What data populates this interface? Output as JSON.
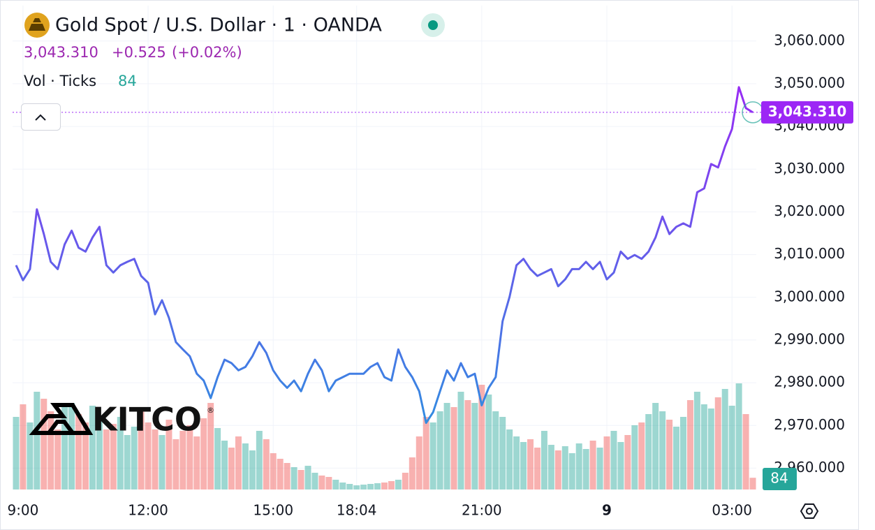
{
  "header": {
    "symbol": "Gold Spot / U.S. Dollar · 1 · OANDA",
    "change": {
      "value": 0.525,
      "label": "+0.525"
    },
    "change_percent": {
      "value": 0.02,
      "label": "(+0.02%)"
    },
    "volume_legend": "Vol · Ticks"
  },
  "logo": {
    "text": "KITCO",
    "mark": "®"
  },
  "chart_data": {
    "type": "line",
    "last_price": {
      "value": 3043.31,
      "label": "3,043.310"
    },
    "series": [
      {
        "gradient": [
          "#9c27f5",
          "#2f8fe0"
        ],
        "values": [
          3007.5,
          3004,
          3006.6,
          3020.6,
          3014.8,
          3008.3,
          3006.6,
          3012.4,
          3015.6,
          3011.6,
          3010.7,
          3014,
          3016.5,
          3007.5,
          3005.8,
          3007.5,
          3008.3,
          3009,
          3005,
          3003.4,
          2996,
          2999.3,
          2995.2,
          2989.5,
          2987.8,
          2986.2,
          2982.1,
          2980.5,
          2976.4,
          2981.3,
          2985.4,
          2984.6,
          2982.9,
          2983.7,
          2986.2,
          2989.5,
          2987,
          2982.9,
          2980.5,
          2978.8,
          2980.5,
          2978,
          2982.1,
          2985.4,
          2982.9,
          2978,
          2980.5,
          2981.3,
          2982.1,
          2982.1,
          2982.1,
          2983.7,
          2984.6,
          2981.3,
          2980.5,
          2987.8,
          2983.7,
          2981.3,
          2978,
          2970.6,
          2973.1,
          2978,
          2982.9,
          2980.5,
          2984.6,
          2981.3,
          2982.1,
          2974.7,
          2978.8,
          2981.3,
          2994.4,
          3000.1,
          3007.5,
          3009,
          3006.6,
          3005,
          3005.8,
          3006.6,
          3002.6,
          3004.2,
          3006.6,
          3006.6,
          3008.3,
          3006.6,
          3008.3,
          3004.2,
          3005.8,
          3010.7,
          3009,
          3009.9,
          3009,
          3010.7,
          3014,
          3018.9,
          3014.8,
          3016.5,
          3017.3,
          3016.5,
          3024.6,
          3025.5,
          3031.2,
          3030.4,
          3035.3,
          3039.4,
          3049.2,
          3044.3,
          3043.31
        ]
      }
    ],
    "volume": {
      "up_color": "#26a69a",
      "down_color": "#ef5350",
      "values": [
        520,
        610,
        480,
        700,
        650,
        560,
        430,
        590,
        620,
        540,
        480,
        600,
        510,
        430,
        470,
        520,
        390,
        450,
        560,
        480,
        430,
        390,
        500,
        360,
        420,
        460,
        380,
        510,
        620,
        440,
        350,
        300,
        380,
        330,
        280,
        420,
        360,
        260,
        220,
        190,
        160,
        140,
        170,
        120,
        100,
        90,
        70,
        50,
        40,
        30,
        35,
        40,
        45,
        50,
        60,
        70,
        120,
        230,
        380,
        520,
        480,
        560,
        620,
        590,
        700,
        640,
        620,
        750,
        680,
        560,
        520,
        430,
        380,
        340,
        360,
        300,
        420,
        320,
        280,
        310,
        260,
        330,
        290,
        350,
        300,
        380,
        420,
        340,
        390,
        460,
        480,
        540,
        620,
        560,
        500,
        450,
        520,
        640,
        700,
        610,
        580,
        660,
        720,
        600,
        760,
        540,
        84
      ]
    },
    "xlim": [
      -0.5,
      106.5
    ],
    "xticks": [
      {
        "value": 1,
        "label": "9:00"
      },
      {
        "value": 19,
        "label": "12:00"
      },
      {
        "value": 37,
        "label": "15:00"
      },
      {
        "value": 49,
        "label": "18:04"
      },
      {
        "value": 67,
        "label": "21:00"
      },
      {
        "value": 85,
        "label": "9"
      },
      {
        "value": 103,
        "label": "03:00"
      }
    ],
    "ylim": [
      2955,
      3068.3
    ],
    "yticks": [
      {
        "value": 2960,
        "label": "2,960.000"
      },
      {
        "value": 2970,
        "label": "2,970.000"
      },
      {
        "value": 2980,
        "label": "2,980.000"
      },
      {
        "value": 2990,
        "label": "2,990.000"
      },
      {
        "value": 3000,
        "label": "3,000.000"
      },
      {
        "value": 3010,
        "label": "3,010.000"
      },
      {
        "value": 3020,
        "label": "3,020.000"
      },
      {
        "value": 3030,
        "label": "3,030.000"
      },
      {
        "value": 3040,
        "label": "3,040.000"
      },
      {
        "value": 3050,
        "label": "3,050.000"
      },
      {
        "value": 3060,
        "label": "3,060.000"
      }
    ],
    "grid": true
  }
}
